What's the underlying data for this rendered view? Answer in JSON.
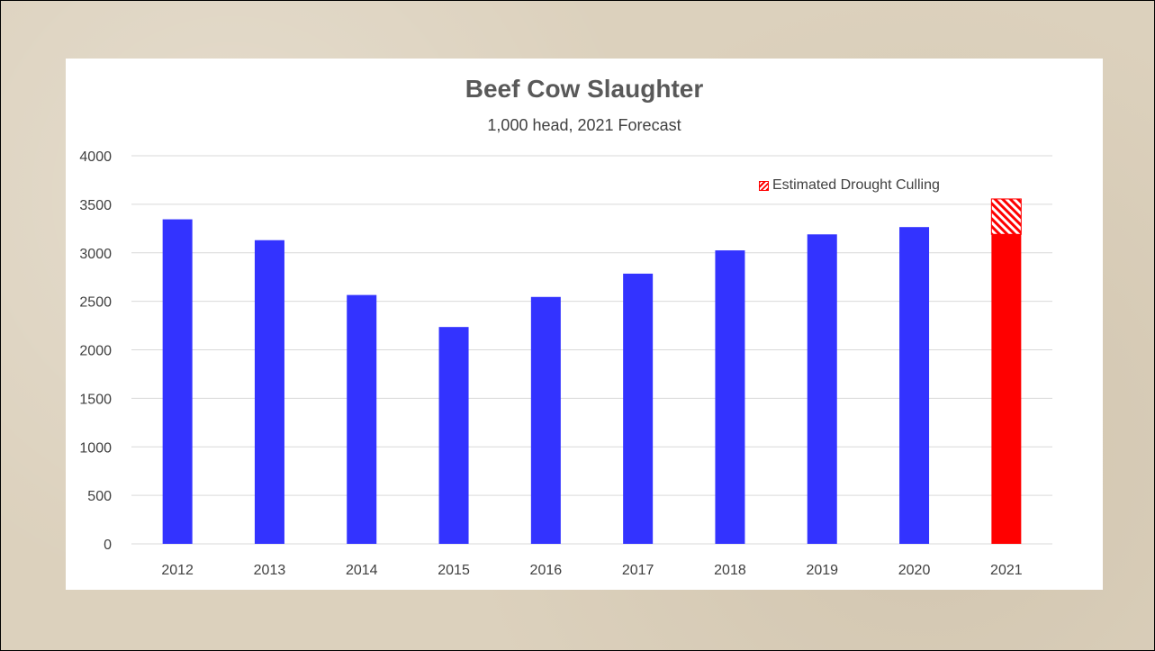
{
  "chart_data": {
    "type": "bar",
    "title": "Beef Cow Slaughter",
    "subtitle": "1,000 head, 2021 Forecast",
    "xlabel": "",
    "ylabel": "",
    "categories": [
      "2012",
      "2013",
      "2014",
      "2015",
      "2016",
      "2017",
      "2018",
      "2019",
      "2020",
      "2021"
    ],
    "series": [
      {
        "values": [
          3345,
          3130,
          2565,
          2235,
          2545,
          2785,
          3025,
          3190,
          3265,
          3190
        ]
      },
      {
        "name": "Estimated Drought Culling",
        "values": [
          0,
          0,
          0,
          0,
          0,
          0,
          0,
          0,
          0,
          365
        ]
      }
    ],
    "ylim": [
      0,
      4000
    ],
    "yticks": [
      "0",
      "500",
      "1000",
      "1500",
      "2000",
      "2500",
      "3000",
      "3500",
      "4000"
    ],
    "grid": true,
    "legend_position": "top-right",
    "colors": {
      "base": "#3333ff",
      "forecast": "#ff0000",
      "drought_hatch": "#ff0000",
      "grid": "#d9d9d9",
      "axis_text": "#404040"
    }
  }
}
